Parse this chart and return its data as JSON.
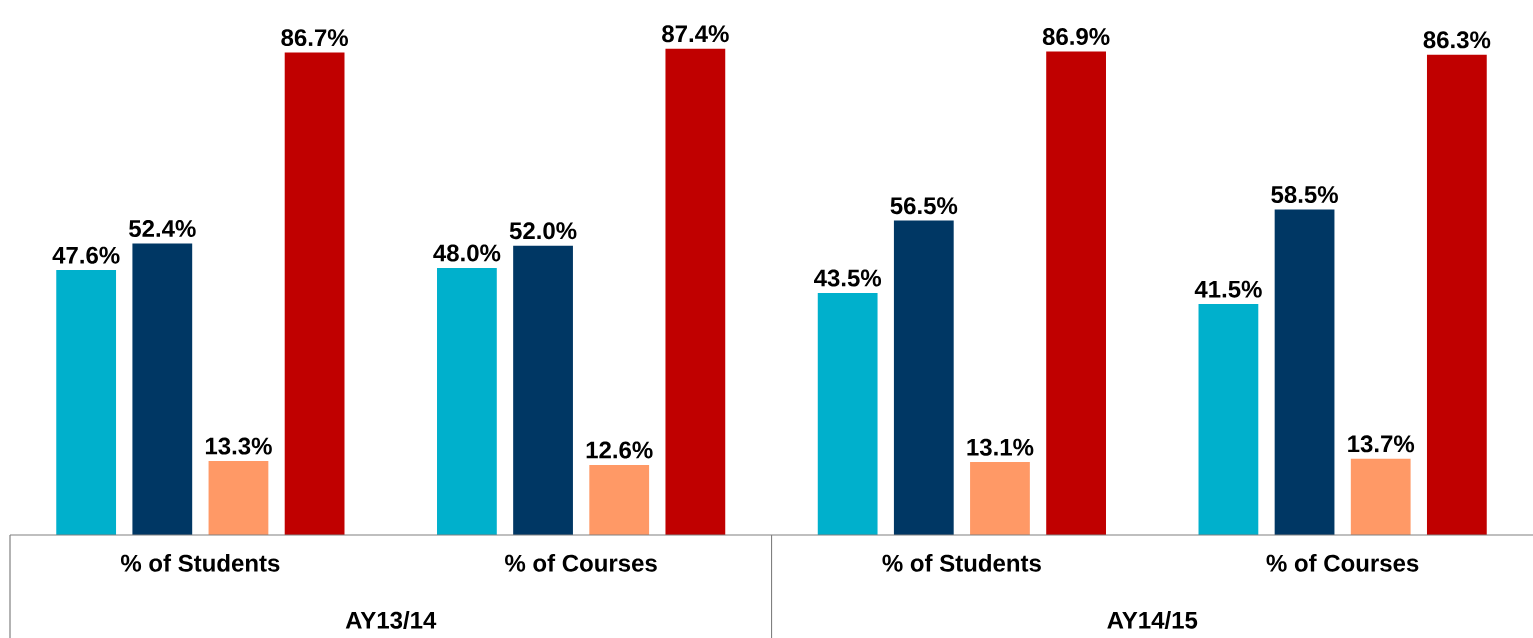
{
  "chart_data": {
    "type": "bar",
    "categories": [
      "% of Students",
      "% of Courses",
      "% of Students",
      "% of Courses"
    ],
    "series": [
      {
        "color": "#00b0cc",
        "values": [
          47.6,
          48.0,
          43.5,
          41.5
        ],
        "value_labels": [
          "47.6%",
          "48.0%",
          "43.5%",
          "41.5%"
        ]
      },
      {
        "color": "#003764",
        "values": [
          52.4,
          52.0,
          56.5,
          58.5
        ],
        "value_labels": [
          "52.4%",
          "52.0%",
          "56.5%",
          "58.5%"
        ]
      },
      {
        "color": "#ff9966",
        "values": [
          13.3,
          12.6,
          13.1,
          13.7
        ],
        "value_labels": [
          "13.3%",
          "12.6%",
          "13.1%",
          "13.7%"
        ]
      },
      {
        "color": "#c00000",
        "values": [
          86.7,
          87.4,
          86.9,
          86.3
        ],
        "value_labels": [
          "86.7%",
          "87.4%",
          "86.9%",
          "86.3%"
        ]
      }
    ],
    "annotations": [
      "AY13/14",
      "AY14/15"
    ]
  }
}
